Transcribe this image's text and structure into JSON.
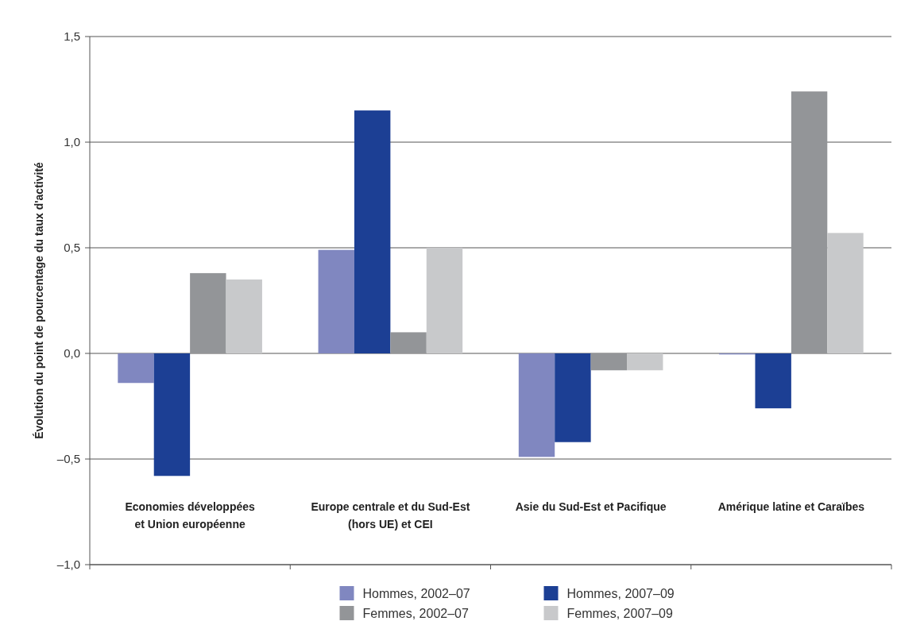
{
  "chart_data": {
    "type": "bar",
    "ylabel": "Évolution du point de pourcentage du taux d'activité",
    "categories": [
      "Economies développées\net Union européenne",
      "Europe centrale et du Sud-Est\n(hors UE) et CEI",
      "Asie du Sud-Est et Pacifique",
      "Amérique latine et Caraïbes"
    ],
    "series": [
      {
        "name": "Hommes, 2002–07",
        "color": "#8087c0",
        "values": [
          -0.14,
          0.49,
          -0.49,
          -0.005
        ]
      },
      {
        "name": "Hommes, 2007–09",
        "color": "#1c3f94",
        "values": [
          -0.58,
          1.15,
          -0.42,
          -0.26
        ]
      },
      {
        "name": "Femmes, 2002–07",
        "color": "#939598",
        "values": [
          0.38,
          0.1,
          -0.08,
          1.24
        ]
      },
      {
        "name": "Femmes, 2007–09",
        "color": "#c8c9cb",
        "values": [
          0.35,
          0.5,
          -0.08,
          0.57
        ]
      }
    ],
    "ylim": [
      -1,
      1.5
    ],
    "yticks": [
      {
        "value": -1,
        "label": "–1,0"
      },
      {
        "value": -0.5,
        "label": "–0,5"
      },
      {
        "value": 0,
        "label": "0,0"
      },
      {
        "value": 0.5,
        "label": "0,5"
      },
      {
        "value": 1,
        "label": "1,0"
      },
      {
        "value": 1.5,
        "label": "1,5"
      }
    ],
    "grid": "y",
    "legend": "bottom"
  }
}
